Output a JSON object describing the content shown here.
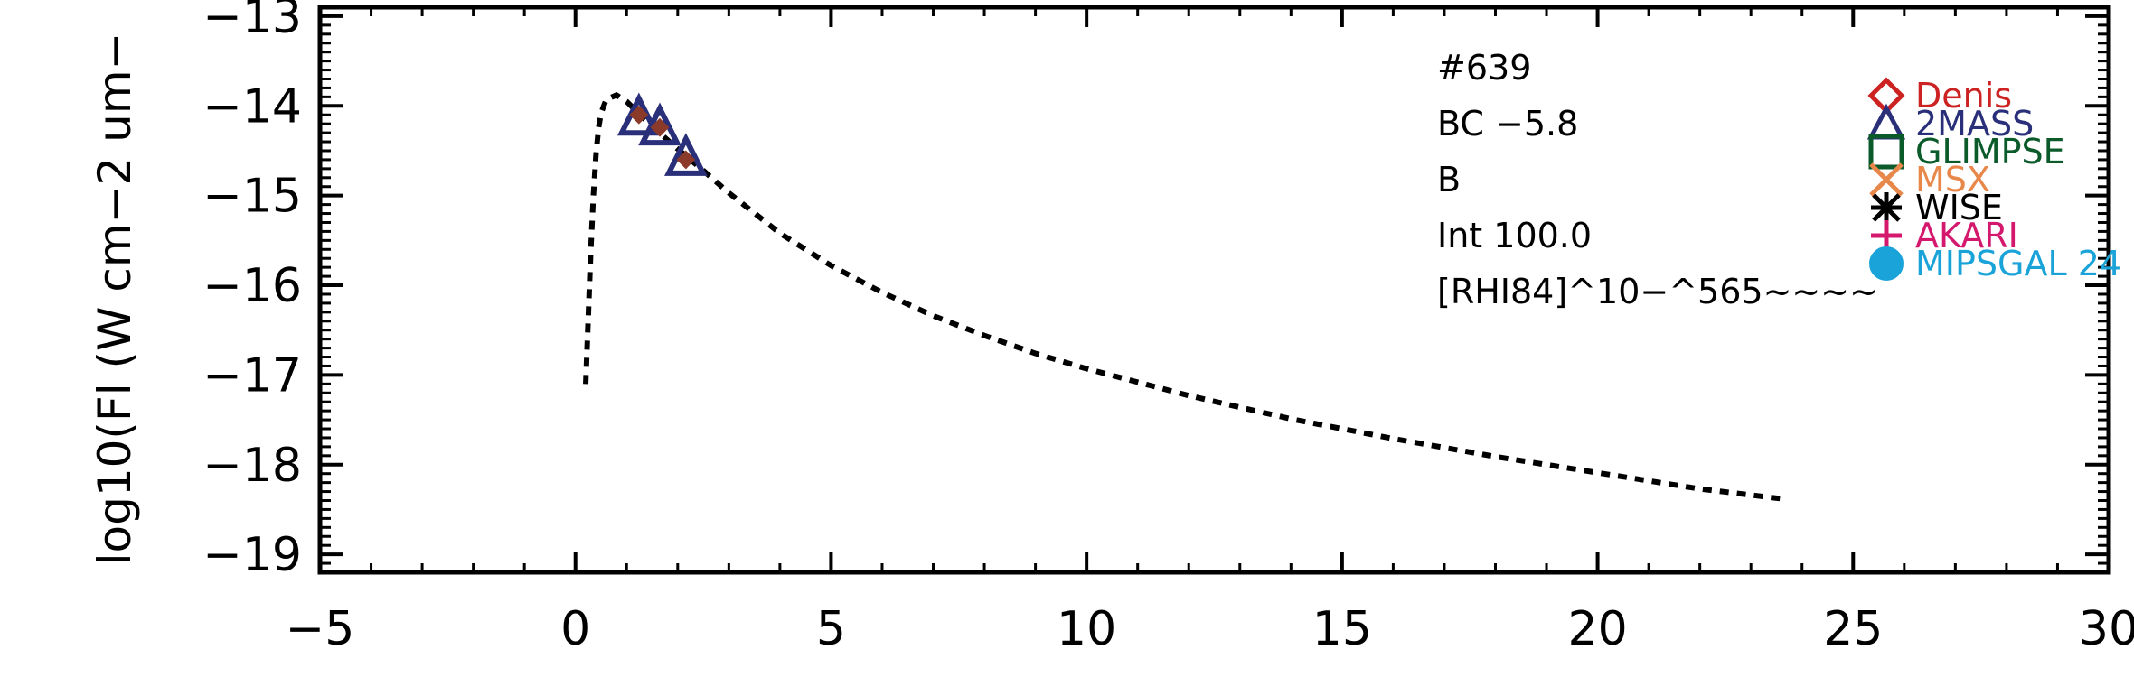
{
  "chart_data": {
    "type": "scatter",
    "xlabel": "",
    "ylabel": "log10(Fl (W cm−2 um−",
    "xlim": [
      -5,
      30
    ],
    "ylim": [
      -19.2,
      -12.9
    ],
    "x_ticks": [
      -5,
      0,
      5,
      10,
      15,
      20,
      25,
      30
    ],
    "x_tick_labels": [
      "−5",
      "0",
      "5",
      "10",
      "15",
      "20",
      "25",
      "30"
    ],
    "y_ticks": [
      -19,
      -18,
      -17,
      -16,
      -15,
      -14,
      -13
    ],
    "y_tick_labels": [
      "−19",
      "−18",
      "−17",
      "−16",
      "−15",
      "−14",
      "−13"
    ],
    "grid": false,
    "annotations": [
      "#639",
      "BC  −5.8",
      "B",
      "Int  100.0",
      "[RHI84]^10−^565~~~~"
    ],
    "legend_position": "top-right",
    "legend": [
      {
        "label": "Denis",
        "marker": "diamond-icon",
        "color": "#cc2222"
      },
      {
        "label": "2MASS",
        "marker": "triangle-icon",
        "color": "#2a2f7a"
      },
      {
        "label": "GLIMPSE",
        "marker": "square-icon",
        "color": "#0b5a2a"
      },
      {
        "label": "MSX",
        "marker": "x-icon",
        "color": "#e8874a"
      },
      {
        "label": "WISE",
        "marker": "asterisk-icon",
        "color": "#000000"
      },
      {
        "label": "AKARI",
        "marker": "plus-icon",
        "color": "#d4186e"
      },
      {
        "label": "MIPSGAL 24",
        "marker": "circle-icon",
        "color": "#1aa3d8"
      }
    ],
    "series": [
      {
        "name": "",
        "kind": "model",
        "style": "dotted",
        "x": [
          0.2,
          0.22,
          0.26,
          0.3,
          0.35,
          0.4,
          0.45,
          0.5,
          0.6,
          0.8,
          1.0,
          1.3,
          1.6,
          2.0,
          2.5,
          3.0,
          4.0,
          5.0,
          6.0,
          7.0,
          8.0,
          9.0,
          10.0,
          12.0,
          14.0,
          16.0,
          18.0,
          20.0,
          22.0,
          23.6
        ],
        "y": [
          -17.1,
          -16.8,
          -16.2,
          -15.6,
          -15.0,
          -14.55,
          -14.25,
          -14.08,
          -13.93,
          -13.88,
          -13.95,
          -14.12,
          -14.28,
          -14.48,
          -14.72,
          -14.97,
          -15.42,
          -15.78,
          -16.08,
          -16.34,
          -16.56,
          -16.76,
          -16.93,
          -17.23,
          -17.49,
          -17.71,
          -17.91,
          -18.09,
          -18.27,
          -18.38
        ]
      },
      {
        "name": "2MASS",
        "kind": "points",
        "marker": "triangle",
        "color": "#2a2f7a",
        "x": [
          1.24,
          1.65,
          2.16
        ],
        "y": [
          -14.13,
          -14.24,
          -14.58
        ]
      },
      {
        "name": "Denis",
        "kind": "points",
        "marker": "diamond-small",
        "color": "#8b3a2a",
        "x": [
          1.24,
          1.65,
          2.16
        ],
        "y": [
          -14.1,
          -14.24,
          -14.6
        ]
      }
    ]
  }
}
